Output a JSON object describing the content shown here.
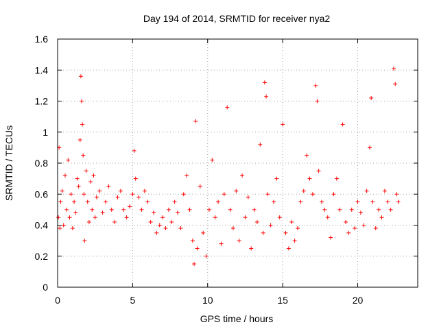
{
  "chart_data": {
    "type": "scatter",
    "title": "Day 194 of 2014, SRMTID for receiver nya2",
    "xlabel": "GPS time / hours",
    "ylabel": "SRMTID / TECUs",
    "xlim": [
      0,
      24
    ],
    "ylim": [
      0,
      1.6
    ],
    "x_ticks": [
      0,
      5,
      10,
      15,
      20
    ],
    "x_tick_labels": [
      "0",
      "5",
      "10",
      "15",
      "20"
    ],
    "y_ticks": [
      0,
      0.2,
      0.4,
      0.6,
      0.8,
      1,
      1.2,
      1.4,
      1.6
    ],
    "y_tick_labels": [
      "0",
      "0.2",
      "0.4",
      "0.6",
      "0.8",
      "1",
      "1.2",
      "1.4",
      "1.6"
    ],
    "grid": true,
    "marker": "+",
    "color": "#ff0000",
    "series": [
      {
        "name": "SRMTID",
        "x": [
          0.05,
          0.1,
          0.15,
          0.2,
          0.3,
          0.4,
          0.5,
          0.6,
          0.7,
          0.8,
          0.9,
          1.0,
          1.1,
          1.2,
          1.3,
          1.4,
          1.5,
          1.55,
          1.6,
          1.65,
          1.7,
          1.75,
          1.8,
          1.9,
          2.0,
          2.1,
          2.2,
          2.3,
          2.4,
          2.5,
          2.6,
          2.8,
          3.0,
          3.2,
          3.4,
          3.6,
          3.8,
          4.0,
          4.2,
          4.4,
          4.6,
          4.8,
          5.0,
          5.1,
          5.2,
          5.4,
          5.6,
          5.8,
          6.0,
          6.2,
          6.4,
          6.6,
          6.8,
          7.0,
          7.2,
          7.4,
          7.6,
          7.8,
          8.0,
          8.2,
          8.4,
          8.6,
          8.8,
          9.0,
          9.1,
          9.2,
          9.3,
          9.5,
          9.7,
          9.9,
          10.1,
          10.3,
          10.5,
          10.7,
          10.9,
          11.1,
          11.3,
          11.5,
          11.7,
          11.9,
          12.1,
          12.3,
          12.5,
          12.7,
          12.9,
          13.1,
          13.3,
          13.5,
          13.7,
          13.8,
          13.9,
          14.0,
          14.2,
          14.4,
          14.6,
          14.8,
          15.0,
          15.2,
          15.4,
          15.6,
          15.8,
          16.0,
          16.2,
          16.4,
          16.6,
          16.8,
          17.0,
          17.2,
          17.3,
          17.4,
          17.6,
          17.8,
          18.0,
          18.2,
          18.4,
          18.6,
          18.8,
          19.0,
          19.2,
          19.4,
          19.6,
          19.8,
          20.0,
          20.2,
          20.4,
          20.6,
          20.8,
          20.9,
          21.0,
          21.2,
          21.4,
          21.6,
          21.8,
          22.0,
          22.2,
          22.4,
          22.5,
          22.6,
          22.7
        ],
        "y": [
          0.45,
          0.9,
          0.38,
          0.55,
          0.62,
          0.4,
          0.72,
          0.5,
          0.82,
          0.45,
          0.6,
          0.38,
          0.55,
          0.48,
          0.7,
          0.65,
          0.95,
          1.36,
          1.2,
          1.05,
          0.85,
          0.6,
          0.3,
          0.75,
          0.55,
          0.42,
          0.68,
          0.5,
          0.72,
          0.45,
          0.58,
          0.62,
          0.48,
          0.55,
          0.65,
          0.5,
          0.42,
          0.58,
          0.62,
          0.5,
          0.45,
          0.52,
          0.6,
          0.88,
          0.7,
          0.58,
          0.5,
          0.62,
          0.55,
          0.42,
          0.48,
          0.35,
          0.4,
          0.45,
          0.38,
          0.5,
          0.42,
          0.55,
          0.48,
          0.38,
          0.6,
          0.72,
          0.5,
          0.3,
          0.15,
          1.07,
          0.25,
          0.65,
          0.35,
          0.2,
          0.5,
          0.82,
          0.45,
          0.55,
          0.28,
          0.6,
          1.16,
          0.5,
          0.38,
          0.62,
          0.3,
          0.72,
          0.45,
          0.58,
          0.25,
          0.5,
          0.42,
          0.92,
          0.35,
          1.32,
          1.23,
          0.6,
          0.4,
          0.55,
          0.7,
          0.45,
          1.05,
          0.35,
          0.25,
          0.42,
          0.3,
          0.38,
          0.55,
          0.62,
          0.85,
          0.7,
          0.6,
          1.3,
          1.2,
          0.75,
          0.55,
          0.5,
          0.45,
          0.32,
          0.6,
          0.7,
          0.5,
          1.05,
          0.42,
          0.35,
          0.5,
          0.38,
          0.55,
          0.48,
          0.4,
          0.62,
          0.9,
          1.22,
          0.55,
          0.38,
          0.5,
          0.45,
          0.62,
          0.55,
          0.5,
          1.41,
          1.31,
          0.6,
          0.55
        ]
      }
    ]
  }
}
